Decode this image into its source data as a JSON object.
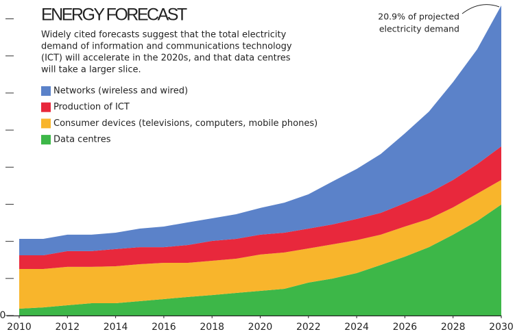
{
  "chart_data": {
    "type": "stacked_area",
    "title": "ENERGY FORECAST",
    "subtitle": [
      "Widely cited forecasts suggest that the total electricity",
      "demand of information and communications technology",
      "(ICT) will accelerate in the 2020s, and that data centres",
      "will take a larger slice."
    ],
    "annotation": [
      "20.9% of projected",
      "electricity demand"
    ],
    "x": [
      2010,
      2011,
      2012,
      2013,
      2014,
      2015,
      2016,
      2017,
      2018,
      2019,
      2020,
      2021,
      2022,
      2023,
      2024,
      2025,
      2026,
      2027,
      2028,
      2029,
      2030
    ],
    "series": [
      {
        "name": "Networks (wireless and wired)",
        "color": "#5b82c9",
        "values": [
          1.11,
          1.11,
          1.11,
          1.11,
          1.1,
          1.25,
          1.39,
          1.53,
          1.52,
          1.66,
          1.8,
          2.03,
          2.31,
          2.9,
          3.37,
          3.97,
          4.71,
          5.49,
          6.6,
          7.75,
          9.5
        ]
      },
      {
        "name": "Production of ICT",
        "color": "#e8283c",
        "values": [
          0.92,
          0.92,
          1.06,
          1.06,
          1.16,
          1.15,
          1.06,
          1.2,
          1.34,
          1.34,
          1.34,
          1.33,
          1.34,
          1.34,
          1.43,
          1.47,
          1.57,
          1.75,
          1.85,
          1.99,
          2.26
        ]
      },
      {
        "name": "Consumer devices (televisions, computers, mobile phones)",
        "color": "#f8b52c",
        "values": [
          2.68,
          2.59,
          2.59,
          2.45,
          2.49,
          2.49,
          2.44,
          2.3,
          2.31,
          2.31,
          2.45,
          2.45,
          2.3,
          2.31,
          2.22,
          2.04,
          2.03,
          1.9,
          1.84,
          1.84,
          1.66
        ]
      },
      {
        "name": "Data centres",
        "color": "#3db748",
        "values": [
          0.46,
          0.55,
          0.69,
          0.83,
          0.83,
          0.97,
          1.11,
          1.25,
          1.38,
          1.52,
          1.66,
          1.8,
          2.22,
          2.49,
          2.86,
          3.41,
          3.97,
          4.61,
          5.45,
          6.37,
          7.48
        ]
      }
    ],
    "xlim": [
      2010,
      2030
    ],
    "xticks": [
      2010,
      2012,
      2014,
      2016,
      2018,
      2020,
      2022,
      2024,
      2026,
      2028,
      2030
    ],
    "ylim": [
      0,
      21.27
    ],
    "yticks": [
      {
        "value": 0,
        "label": "0"
      },
      2.5,
      5,
      7.5,
      10,
      12.5,
      15,
      17.5,
      20
    ]
  }
}
